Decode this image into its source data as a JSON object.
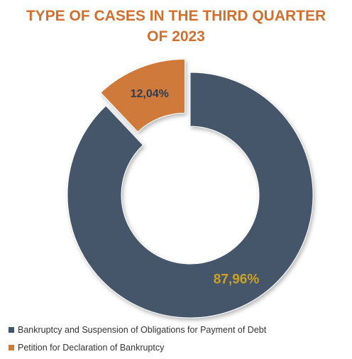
{
  "chart_data": {
    "type": "pie",
    "variant": "donut",
    "title_lines": [
      "TYPE OF CASES IN THE THIRD QUARTER",
      "OF 2023"
    ],
    "slices": [
      {
        "label": "Bankruptcy and Suspension of Obligations for Payment of Debt",
        "value": 87.96,
        "display": "87,96%",
        "color": "#44546a",
        "label_color": "#c9a227"
      },
      {
        "label": "Petition for Declaration of Bankruptcy",
        "value": 12.04,
        "display": "12,04%",
        "color": "#cf7a3a",
        "label_color": "#2f3b52",
        "exploded": true
      }
    ],
    "legend_position": "bottom-left"
  }
}
